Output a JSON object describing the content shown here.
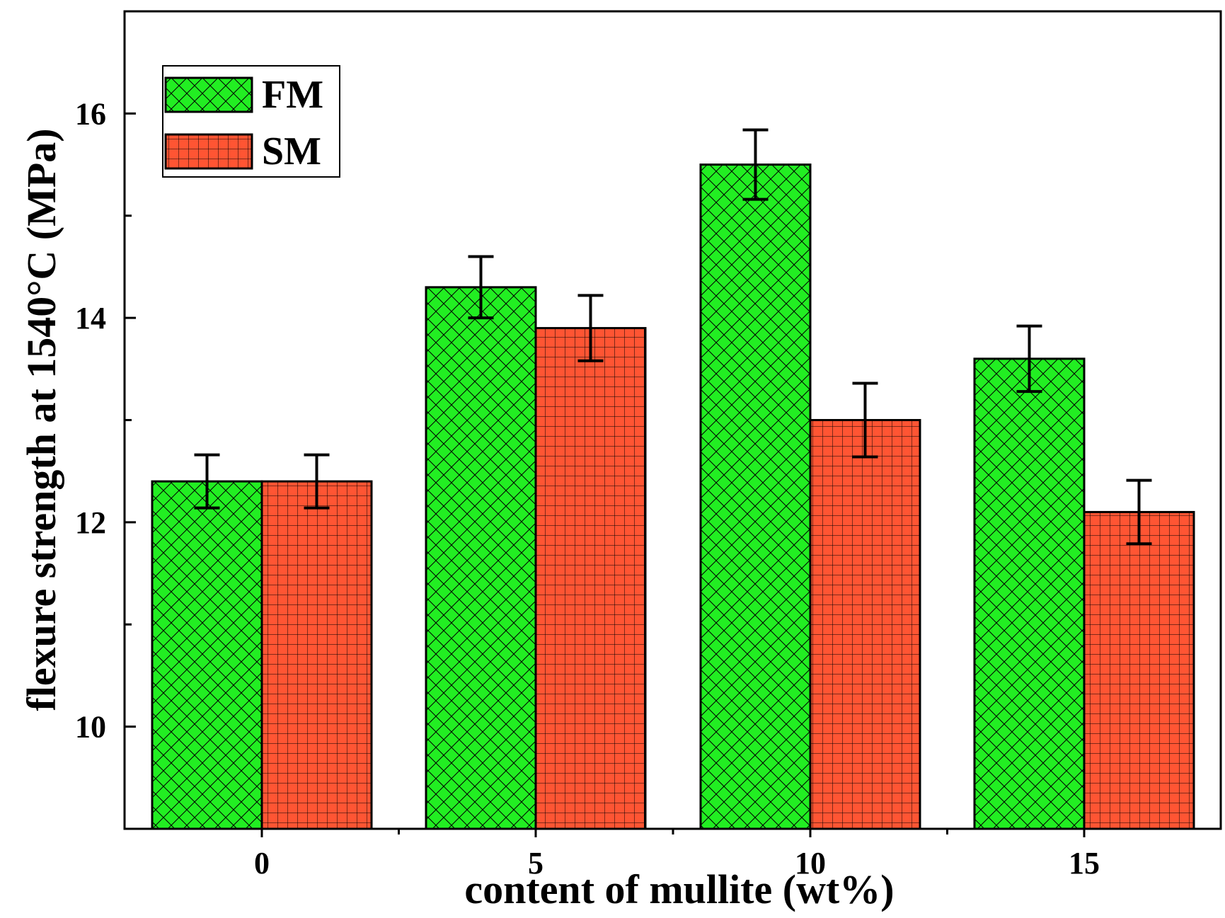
{
  "chart_data": {
    "type": "bar",
    "title": "",
    "xlabel": "content of mullite (wt%)",
    "ylabel": "flexure strength at 1540°C (MPa)",
    "categories": [
      "0",
      "5",
      "10",
      "15"
    ],
    "ylim": [
      9,
      17
    ],
    "yticks": [
      10,
      12,
      14,
      16
    ],
    "ytick_labels": [
      "10",
      "12",
      "14",
      "16"
    ],
    "legend_position": "top-left",
    "grid": false,
    "series": [
      {
        "name": "FM",
        "color": "#22ee22",
        "pattern": "crosshatch",
        "values": [
          12.4,
          14.3,
          15.5,
          13.6
        ],
        "errors": [
          0.26,
          0.3,
          0.34,
          0.32
        ]
      },
      {
        "name": "SM",
        "color": "#ff5533",
        "pattern": "grid",
        "values": [
          12.4,
          13.9,
          13.0,
          12.1
        ],
        "errors": [
          0.26,
          0.32,
          0.36,
          0.31
        ]
      }
    ]
  }
}
